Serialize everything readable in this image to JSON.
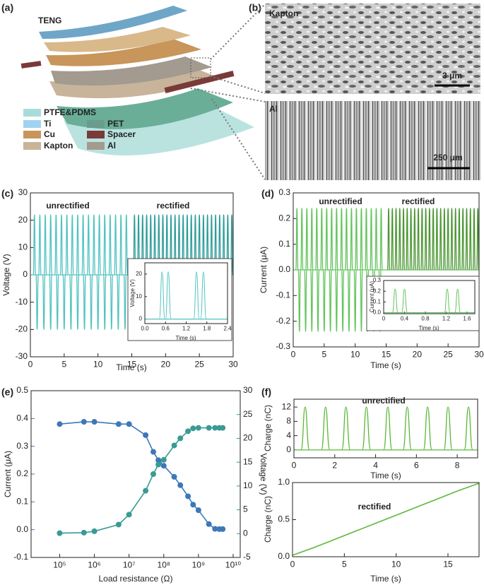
{
  "diagram": {
    "panel": "(a)",
    "title": "TENG",
    "legend": [
      "PTFE&PDMS",
      "Ti",
      "Cu",
      "Kapton",
      "PET",
      "Spacer",
      "Al"
    ]
  },
  "images": {
    "panel": "(b)",
    "top_label": "Kapton",
    "top_scale": "3 μm",
    "bottom_label": "Al",
    "bottom_scale": "250 μm"
  },
  "chart_data": [
    {
      "type": "pulses",
      "label": "(c)",
      "xlabel": "Time (s)",
      "ylabel": "Voltage (V)",
      "annotations": [
        "unrectified",
        "rectified"
      ],
      "xlim": [
        0,
        30
      ],
      "xticks": [
        0,
        5,
        10,
        15,
        20,
        25,
        30
      ],
      "ylim": [
        -30,
        30
      ],
      "yticks": [
        -30,
        -20,
        -10,
        0,
        10,
        20,
        30
      ],
      "series": [
        {
          "color": "#52c3c0",
          "x": [
            0.6,
            1.4,
            2.2,
            3.0,
            3.8,
            4.6,
            5.4,
            6.2,
            7.0,
            7.8,
            8.6,
            9.4,
            10.2,
            11.0,
            11.8,
            12.6,
            13.4,
            14.2
          ],
          "values": [
            22,
            22,
            22,
            22,
            22,
            22,
            22,
            22,
            22,
            22,
            22,
            22,
            22,
            22,
            22,
            22,
            22,
            22
          ]
        },
        {
          "color": "#52c3c0",
          "x": [
            1,
            2,
            3,
            4,
            5,
            6,
            7,
            8,
            9,
            10,
            11,
            12,
            13,
            14
          ],
          "values": [
            -20,
            -20,
            -20,
            -20,
            -20,
            -20,
            -20,
            -20,
            -20,
            -20,
            -20,
            -20,
            -20,
            -20
          ]
        },
        {
          "color": "#2e9c98",
          "x": [
            15.4,
            16.0,
            16.6,
            17.2,
            17.8,
            18.4,
            19.0,
            19.6,
            20.2,
            20.8,
            21.4,
            22.0,
            22.6,
            23.2,
            23.8,
            24.4,
            25.0,
            25.6,
            26.2,
            26.8,
            27.4,
            28.0,
            28.6,
            29.2,
            29.8
          ],
          "values": [
            22,
            22,
            22,
            22,
            22,
            22,
            22,
            22,
            22,
            22,
            22,
            22,
            22,
            22,
            22,
            22,
            22,
            22,
            22,
            22,
            22,
            22,
            22,
            22,
            22
          ]
        }
      ]
    },
    {
      "type": "pulses",
      "xlabel": "Time (s)",
      "ylabel": "Voltage (V)",
      "xlim": [
        0,
        2.4
      ],
      "xticks": [
        {
          "value": 0,
          "label": "0.0"
        },
        0.6,
        1.2,
        1.8,
        2.4
      ],
      "ylim": [
        -2,
        25
      ],
      "yticks": [
        0,
        10,
        20
      ],
      "series": [
        {
          "color": "#52c3c0",
          "x": [
            0.5,
            0.68,
            1.5,
            1.7
          ],
          "values": [
            21,
            21,
            21,
            21
          ]
        }
      ]
    },
    {
      "type": "pulses",
      "label": "(d)",
      "xlabel": "Time (s)",
      "ylabel": "Current (μA)",
      "annotations": [
        "unrectified",
        "rectified"
      ],
      "xlim": [
        0,
        30
      ],
      "xticks": [
        0,
        5,
        10,
        15,
        20,
        25,
        30
      ],
      "ylim": [
        -0.3,
        0.3
      ],
      "yticks": [
        -0.3,
        -0.2,
        -0.1,
        {
          "value": 0,
          "label": "0.0"
        },
        0.1,
        0.2,
        0.3
      ],
      "series": [
        {
          "color": "#62c45c",
          "x": [
            0.6,
            1.4,
            2.2,
            3.0,
            3.8,
            4.6,
            5.4,
            6.2,
            7.0,
            7.8,
            8.6,
            9.4,
            10.2,
            11.0,
            11.8,
            12.6,
            13.4,
            14.2
          ],
          "values": [
            0.24,
            0.24,
            0.24,
            0.24,
            0.24,
            0.24,
            0.24,
            0.24,
            0.24,
            0.24,
            0.24,
            0.24,
            0.24,
            0.24,
            0.24,
            0.24,
            0.24,
            0.24
          ]
        },
        {
          "color": "#62c45c",
          "x": [
            1,
            2,
            3,
            4,
            5,
            6,
            7,
            8,
            9,
            10,
            11,
            12,
            13,
            14
          ],
          "values": [
            -0.24,
            -0.24,
            -0.24,
            -0.24,
            -0.24,
            -0.24,
            -0.24,
            -0.24,
            -0.24,
            -0.24,
            -0.24,
            -0.24,
            -0.24,
            -0.24
          ]
        },
        {
          "color": "#4a9632",
          "x": [
            15.4,
            16.0,
            16.6,
            17.2,
            17.8,
            18.4,
            19.0,
            19.6,
            20.2,
            20.8,
            21.4,
            22.0,
            22.6,
            23.2,
            23.8,
            24.4,
            25.0,
            25.6,
            26.2,
            26.8,
            27.4,
            28.0,
            28.6,
            29.2,
            29.8
          ],
          "values": [
            0.24,
            0.24,
            0.24,
            0.24,
            0.24,
            0.24,
            0.24,
            0.24,
            0.24,
            0.24,
            0.24,
            0.24,
            0.24,
            0.24,
            0.24,
            0.24,
            0.24,
            0.24,
            0.24,
            0.24,
            0.24,
            0.24,
            0.24,
            0.24,
            0.24
          ]
        }
      ]
    },
    {
      "type": "pulses",
      "xlabel": "Time (s)",
      "ylabel": "Current (μA)",
      "xlim": [
        0,
        1.75
      ],
      "xticks": [
        0,
        0.4,
        0.8,
        1.2,
        1.6
      ],
      "ylim": [
        -0.01,
        0.3
      ],
      "yticks": [
        {
          "value": 0,
          "label": "0.0"
        },
        0.1,
        0.2,
        0.3
      ],
      "series": [
        {
          "color": "#62c45c",
          "x": [
            0.22,
            0.4,
            1.22,
            1.42
          ],
          "values": [
            0.22,
            0.22,
            0.22,
            0.22
          ]
        }
      ]
    },
    {
      "type": "line",
      "label": "(e)",
      "xlabel": "Load resistance (Ω)",
      "ylabel": "Current (μA)",
      "y2label": "Voltage (V)",
      "log_x": true,
      "markers": true,
      "xlim": [
        15000,
        16000000000
      ],
      "xticks": [
        {
          "value": 100000,
          "label": "10⁵"
        },
        {
          "value": 1000000,
          "label": "10⁶"
        },
        {
          "value": 10000000,
          "label": "10⁷"
        },
        {
          "value": 100000000,
          "label": "10⁸"
        },
        {
          "value": 1000000000,
          "label": "10⁹"
        },
        {
          "value": 10000000000,
          "label": "10¹⁰"
        }
      ],
      "ylim": [
        -0.1,
        0.5
      ],
      "yticks": [
        -0.1,
        {
          "value": 0,
          "label": "0.0"
        },
        0.1,
        0.2,
        0.3,
        0.4,
        0.5
      ],
      "y2lim": [
        -5,
        30
      ],
      "y2ticks": [
        -5,
        0,
        5,
        10,
        15,
        20,
        25,
        30
      ],
      "x": [
        100000,
        500000,
        1000000,
        5000000,
        10000000,
        30000000,
        50000000,
        70000000,
        100000000,
        200000000,
        300000000,
        500000000,
        700000000,
        1000000000,
        2000000000,
        3000000000,
        4000000000,
        5000000000
      ],
      "series": [
        {
          "color": "#3d78b8",
          "values": [
            0.38,
            0.388,
            0.388,
            0.38,
            0.38,
            0.34,
            0.28,
            0.25,
            0.23,
            0.19,
            0.16,
            0.12,
            0.09,
            0.07,
            0.02,
            0.003,
            0.002,
            0.002
          ]
        },
        {
          "color": "#3a9a94",
          "axis": "y2",
          "values": [
            0.1,
            0.2,
            0.5,
            1.9,
            4,
            9,
            12.5,
            14.5,
            15.5,
            18.5,
            20,
            21.5,
            22.1,
            22.2,
            22.2,
            22.2,
            22.2,
            22.2
          ]
        }
      ]
    },
    {
      "type": "pulses",
      "label": "(f)",
      "xlabel": "Time (s)",
      "ylabel": "Charge (nC)",
      "annotations": [
        "unrectified"
      ],
      "xlim": [
        0,
        9
      ],
      "xticks": [
        0,
        2,
        4,
        6,
        8
      ],
      "ylim": [
        -2.2,
        14.2
      ],
      "yticks": [
        0,
        4,
        8,
        12
      ],
      "series": [
        {
          "color": "#5cb83a",
          "x": [
            0.55,
            1.55,
            2.55,
            3.55,
            4.6,
            5.55,
            6.55,
            7.55,
            8.55
          ],
          "values": [
            12,
            12,
            12,
            12,
            12,
            12,
            12,
            12,
            12
          ]
        }
      ]
    },
    {
      "type": "line",
      "xlabel": "Time (s)",
      "ylabel": "Charge (nC)",
      "annotations": [
        "rectified"
      ],
      "xlim": [
        0,
        18
      ],
      "xticks": [
        0,
        5,
        10,
        15
      ],
      "ylim": [
        0,
        1
      ],
      "yticks": [
        {
          "value": 0,
          "label": "0.0"
        },
        0.5,
        {
          "value": 1,
          "label": "1.0"
        }
      ],
      "x": [
        0,
        2,
        4,
        6,
        8,
        10,
        12,
        14,
        16,
        18
      ],
      "series": [
        {
          "color": "#5cb83a",
          "values": [
            0.02,
            0.12,
            0.23,
            0.34,
            0.45,
            0.56,
            0.67,
            0.78,
            0.89,
            0.99
          ]
        }
      ]
    }
  ]
}
